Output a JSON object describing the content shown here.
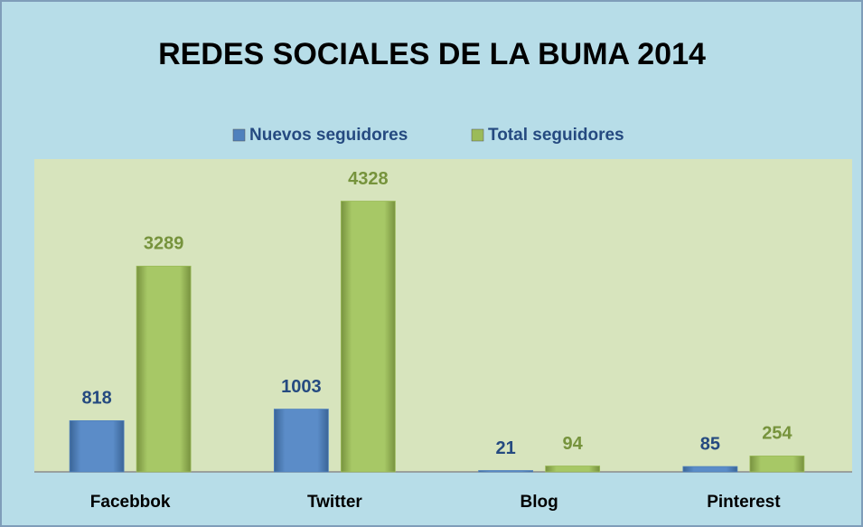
{
  "chart_data": {
    "type": "bar",
    "title": "REDES SOCIALES DE LA BUMA 2014",
    "categories": [
      "Facebbok",
      "Twitter",
      "Blog",
      "Pinterest"
    ],
    "series": [
      {
        "name": "Nuevos seguidores",
        "color": "#4f81bd",
        "label_color": "#254a80",
        "values": [
          818,
          1003,
          21,
          85
        ]
      },
      {
        "name": "Total seguidores",
        "color": "#9bbb59",
        "label_color": "#76933c",
        "values": [
          3289,
          4328,
          94,
          254
        ]
      }
    ],
    "ylim": [
      0,
      5000
    ],
    "legend": "top"
  }
}
